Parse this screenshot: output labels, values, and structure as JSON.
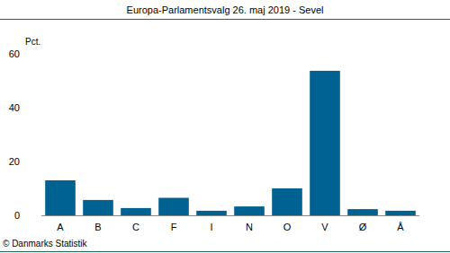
{
  "chart_data": {
    "type": "bar",
    "title": "Europa-Parlamentsvalg 26. maj 2019 - Sevel",
    "y_label": "Pct.",
    "source": "© Danmarks Statistik",
    "categories": [
      "A",
      "B",
      "C",
      "F",
      "I",
      "N",
      "O",
      "V",
      "Ø",
      "Å"
    ],
    "values": [
      13.0,
      5.7,
      2.7,
      6.5,
      1.7,
      3.3,
      10.0,
      53.7,
      2.3,
      1.7
    ],
    "color": "#006290",
    "ylim": [
      0,
      60
    ],
    "yticks": [
      0,
      20,
      40,
      60
    ],
    "grid": false
  }
}
